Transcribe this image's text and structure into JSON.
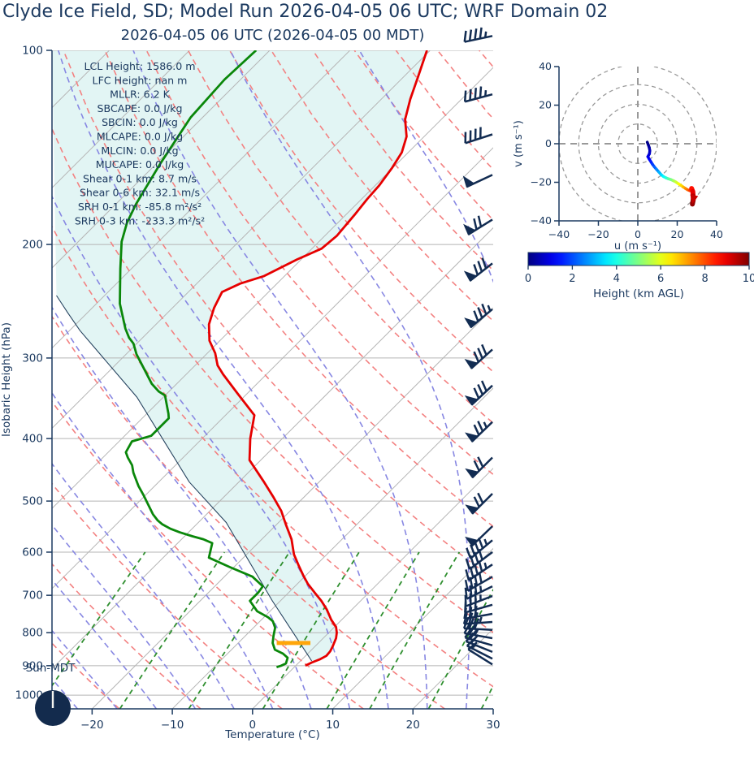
{
  "title": "Clyde Ice Field, SD; Model Run 2026-04-05 06 UTC; WRF Domain 02",
  "subtitle": "2026-04-05 06 UTC  (2026-04-05 00 MDT)",
  "colors": {
    "text_navy": "#1c3a60",
    "barb_navy": "#122c52",
    "temperature": "#e60000",
    "dewpoint": "#0a870a",
    "parcel": "#26435f",
    "cape_fill": "#e2f5f4",
    "dry_adiabat": "#f38181",
    "moist_adiabat": "#8787e2",
    "mixing_ratio": "#2f8f2f",
    "isotherm_gray": "#b5b5b5",
    "hodo_gray": "#999999",
    "lcl_orange": "#ffa60a",
    "sun_clock_fill": "#132b4d"
  },
  "sun_clock": {
    "label": "Sun-MDT"
  },
  "chart_data": [
    {
      "type": "line",
      "id": "skewt",
      "xlabel": "Temperature (°C)",
      "ylabel": "Isobaric Height (hPa)",
      "xlim": [
        -25,
        30
      ],
      "pressure_range": [
        100,
        1050
      ],
      "x_tick_values": [
        -20,
        -10,
        0,
        10,
        20,
        30
      ],
      "x_tick_labels": [
        "−20",
        "−10",
        "0",
        "10",
        "20",
        "30"
      ],
      "y_ticks": [
        100,
        200,
        300,
        400,
        500,
        600,
        700,
        800,
        900,
        1000
      ],
      "stats": [
        {
          "label": "LCL Height",
          "value": "1586.0 m"
        },
        {
          "label": "LFC Height",
          "value": "nan m"
        },
        {
          "label": "MLLR",
          "value": "6.2 K"
        },
        {
          "label": "SBCAPE",
          "value": "0.0 J/kg"
        },
        {
          "label": "SBCIN",
          "value": "0.0 J/kg"
        },
        {
          "label": "MLCAPE",
          "value": "0.0 J/kg"
        },
        {
          "label": "MLCIN",
          "value": "0.0 J/kg"
        },
        {
          "label": "MUCAPE",
          "value": "0.0 J/kg"
        },
        {
          "label": "Shear 0-1 km",
          "value": "8.7 m/s"
        },
        {
          "label": "Shear 0-6 km",
          "value": "32.1 m/s"
        },
        {
          "label": "SRH 0-1 km",
          "value": "-85.8 m²/s²"
        },
        {
          "label": "SRH 0-3 km",
          "value": "-233.3 m²/s²"
        }
      ],
      "temperature": [
        [
          100,
          -60.4
        ],
        [
          110,
          -58.2
        ],
        [
          119,
          -56.4
        ],
        [
          128,
          -54.5
        ],
        [
          136,
          -52.2
        ],
        [
          144,
          -50.8
        ],
        [
          152,
          -50.1
        ],
        [
          162,
          -49.5
        ],
        [
          170,
          -49.3
        ],
        [
          180,
          -48.9
        ],
        [
          194,
          -48.5
        ],
        [
          203,
          -48.8
        ],
        [
          211,
          -50.5
        ],
        [
          224,
          -52.6
        ],
        [
          230,
          -54.6
        ],
        [
          237,
          -55.8
        ],
        [
          251,
          -54.8
        ],
        [
          266,
          -53.4
        ],
        [
          282,
          -51.3
        ],
        [
          295,
          -49.0
        ],
        [
          308,
          -47.2
        ],
        [
          318,
          -45.4
        ],
        [
          340,
          -41.3
        ],
        [
          368,
          -36.4
        ],
        [
          400,
          -34.0
        ],
        [
          432,
          -31.4
        ],
        [
          466,
          -27.0
        ],
        [
          494,
          -23.7
        ],
        [
          518,
          -21.1
        ],
        [
          543,
          -18.9
        ],
        [
          573,
          -16.3
        ],
        [
          605,
          -14.1
        ],
        [
          631,
          -12.0
        ],
        [
          651,
          -10.4
        ],
        [
          672,
          -8.7
        ],
        [
          695,
          -6.6
        ],
        [
          714,
          -4.9
        ],
        [
          737,
          -3.1
        ],
        [
          764,
          -1.3
        ],
        [
          784,
          0.2
        ],
        [
          800,
          1.0
        ],
        [
          816,
          1.6
        ],
        [
          840,
          2.2
        ],
        [
          855,
          2.5
        ],
        [
          869,
          2.6
        ],
        [
          880,
          2.2
        ],
        [
          890,
          1.6
        ],
        [
          900,
          1.2
        ]
      ],
      "dewpoint": [
        [
          100,
          -81.7
        ],
        [
          111,
          -82.0
        ],
        [
          127,
          -81.5
        ],
        [
          150,
          -79.5
        ],
        [
          173,
          -77.5
        ],
        [
          185,
          -76.3
        ],
        [
          198,
          -74.6
        ],
        [
          218,
          -71.4
        ],
        [
          247,
          -67.1
        ],
        [
          270,
          -63.3
        ],
        [
          279,
          -61.7
        ],
        [
          285,
          -60.4
        ],
        [
          296,
          -58.7
        ],
        [
          315,
          -55.4
        ],
        [
          329,
          -53.1
        ],
        [
          338,
          -51.3
        ],
        [
          343,
          -50.0
        ],
        [
          366,
          -47.3
        ],
        [
          372,
          -46.7
        ],
        [
          396,
          -46.7
        ],
        [
          404,
          -48.4
        ],
        [
          420,
          -47.8
        ],
        [
          428,
          -46.9
        ],
        [
          440,
          -45.4
        ],
        [
          452,
          -44.3
        ],
        [
          474,
          -42.0
        ],
        [
          490,
          -40.2
        ],
        [
          524,
          -36.7
        ],
        [
          536,
          -35.3
        ],
        [
          543,
          -34.3
        ],
        [
          552,
          -32.7
        ],
        [
          559,
          -31.1
        ],
        [
          567,
          -29.0
        ],
        [
          573,
          -27.3
        ],
        [
          581,
          -25.7
        ],
        [
          612,
          -24.3
        ],
        [
          633,
          -20.5
        ],
        [
          655,
          -16.5
        ],
        [
          678,
          -14.0
        ],
        [
          693,
          -13.8
        ],
        [
          714,
          -13.8
        ],
        [
          741,
          -11.6
        ],
        [
          757,
          -9.5
        ],
        [
          768,
          -8.4
        ],
        [
          786,
          -7.3
        ],
        [
          809,
          -6.5
        ],
        [
          830,
          -5.7
        ],
        [
          850,
          -4.6
        ],
        [
          862,
          -3.1
        ],
        [
          875,
          -2.0
        ],
        [
          893,
          -1.5
        ],
        [
          900,
          -1.8
        ],
        [
          905,
          -2.2
        ]
      ],
      "parcel": [
        [
          240,
          -76.0
        ],
        [
          255,
          -72.5
        ],
        [
          272,
          -68.7
        ],
        [
          345,
          -53.3
        ],
        [
          467,
          -36.2
        ],
        [
          540,
          -26.5
        ],
        [
          714,
          -11.0
        ],
        [
          885,
          1.4
        ]
      ],
      "lcl_bar": {
        "pressure": 830,
        "t_from": -5.2,
        "t_to": -1.0
      },
      "background": {
        "isotherms_C": {
          "from": -110,
          "to": 40,
          "step": 10
        },
        "dry_adiabats_K": {
          "from": 233,
          "to": 533,
          "step": 10
        },
        "moist_adiabat_starts_C": {
          "from": -40,
          "to": 35,
          "step": 5
        },
        "mixing_ratios_gkg": [
          0.4,
          1,
          2,
          4,
          7,
          10,
          16,
          24,
          32
        ]
      },
      "wind_barbs": [
        {
          "p": 95,
          "pennants": 0,
          "fulls": 4,
          "halfs": 1,
          "angle": -12
        },
        {
          "p": 117,
          "pennants": 0,
          "fulls": 4,
          "halfs": 1,
          "angle": -15
        },
        {
          "p": 135,
          "pennants": 0,
          "fulls": 4,
          "halfs": 0,
          "angle": -18
        },
        {
          "p": 156,
          "pennants": 1,
          "fulls": 0,
          "halfs": 0,
          "angle": -25
        },
        {
          "p": 183,
          "pennants": 1,
          "fulls": 2,
          "halfs": 0,
          "angle": -32
        },
        {
          "p": 214,
          "pennants": 1,
          "fulls": 3,
          "halfs": 0,
          "angle": -38
        },
        {
          "p": 252,
          "pennants": 1,
          "fulls": 3,
          "halfs": 1,
          "angle": -40
        },
        {
          "p": 291,
          "pennants": 1,
          "fulls": 3,
          "halfs": 0,
          "angle": -42
        },
        {
          "p": 331,
          "pennants": 1,
          "fulls": 3,
          "halfs": 0,
          "angle": -43
        },
        {
          "p": 377,
          "pennants": 1,
          "fulls": 2,
          "halfs": 1,
          "angle": -44
        },
        {
          "p": 428,
          "pennants": 1,
          "fulls": 2,
          "halfs": 0,
          "angle": -45
        },
        {
          "p": 487,
          "pennants": 1,
          "fulls": 2,
          "halfs": 0,
          "angle": -45
        },
        {
          "p": 547,
          "pennants": 1,
          "fulls": 0,
          "halfs": 0,
          "angle": -44
        },
        {
          "p": 575,
          "pennants": 0,
          "fulls": 4,
          "halfs": 1,
          "angle": -40
        },
        {
          "p": 600,
          "pennants": 0,
          "fulls": 4,
          "halfs": 0,
          "angle": -37
        },
        {
          "p": 627,
          "pennants": 0,
          "fulls": 4,
          "halfs": 1,
          "angle": -34
        },
        {
          "p": 655,
          "pennants": 0,
          "fulls": 4,
          "halfs": 0,
          "angle": -30
        },
        {
          "p": 678,
          "pennants": 0,
          "fulls": 3,
          "halfs": 1,
          "angle": -26
        },
        {
          "p": 702,
          "pennants": 0,
          "fulls": 3,
          "halfs": 1,
          "angle": -21
        },
        {
          "p": 724,
          "pennants": 0,
          "fulls": 3,
          "halfs": 0,
          "angle": -16
        },
        {
          "p": 748,
          "pennants": 0,
          "fulls": 3,
          "halfs": 0,
          "angle": -10
        },
        {
          "p": 770,
          "pennants": 0,
          "fulls": 3,
          "halfs": 1,
          "angle": -4
        },
        {
          "p": 792,
          "pennants": 0,
          "fulls": 3,
          "halfs": 0,
          "angle": 3
        },
        {
          "p": 816,
          "pennants": 0,
          "fulls": 2,
          "halfs": 1,
          "angle": 10
        },
        {
          "p": 837,
          "pennants": 0,
          "fulls": 2,
          "halfs": 0,
          "angle": 16
        },
        {
          "p": 857,
          "pennants": 0,
          "fulls": 2,
          "halfs": 0,
          "angle": 22
        },
        {
          "p": 878,
          "pennants": 0,
          "fulls": 1,
          "halfs": 1,
          "angle": 27
        },
        {
          "p": 896,
          "pennants": 0,
          "fulls": 1,
          "halfs": 0,
          "angle": 32
        }
      ]
    },
    {
      "type": "line",
      "id": "hodograph",
      "xlabel": "u (m s⁻¹)",
      "ylabel": "v (m s⁻¹)",
      "xlim": [
        -40,
        40
      ],
      "ylim": [
        -40,
        40
      ],
      "tick_values": [
        -40,
        -20,
        0,
        20,
        40
      ],
      "tick_labels": [
        "−40",
        "−20",
        "0",
        "20",
        "40"
      ],
      "rings": [
        10,
        20,
        30,
        40
      ],
      "trace_uvh": [
        [
          4.8,
          0.8,
          0
        ],
        [
          5.3,
          -0.5,
          0.15
        ],
        [
          5.8,
          -2.0,
          0.3
        ],
        [
          6.1,
          -3.6,
          0.5
        ],
        [
          5.9,
          -5.2,
          0.7
        ],
        [
          5.1,
          -6.7,
          0.9
        ],
        [
          5.8,
          -8.0,
          1.1
        ],
        [
          6.6,
          -9.3,
          1.4
        ],
        [
          7.4,
          -10.6,
          1.7
        ],
        [
          8.4,
          -12.0,
          2.0
        ],
        [
          9.5,
          -13.3,
          2.4
        ],
        [
          10.7,
          -14.7,
          2.8
        ],
        [
          11.8,
          -16.0,
          3.2
        ],
        [
          13.0,
          -17.0,
          3.6
        ],
        [
          14.3,
          -17.7,
          4.0
        ],
        [
          15.5,
          -18.2,
          4.4
        ],
        [
          16.8,
          -18.6,
          4.8
        ],
        [
          18.1,
          -19.2,
          5.2
        ],
        [
          19.4,
          -19.9,
          5.6
        ],
        [
          20.7,
          -20.8,
          6.0
        ],
        [
          21.9,
          -21.6,
          6.4
        ],
        [
          23.1,
          -22.5,
          6.8
        ],
        [
          24.2,
          -23.2,
          7.2
        ],
        [
          25.3,
          -23.9,
          7.6
        ],
        [
          26.3,
          -24.3,
          8.0
        ],
        [
          27.3,
          -23.2,
          8.4
        ],
        [
          27.9,
          -24.8,
          8.8
        ],
        [
          28.1,
          -27.0,
          9.2
        ],
        [
          28.1,
          -29.3,
          9.6
        ],
        [
          27.7,
          -31.3,
          10.0
        ]
      ],
      "colorbar": {
        "label": "Height (km AGL)",
        "ticks": [
          0,
          2,
          4,
          6,
          8,
          10
        ],
        "min": 0,
        "max": 10,
        "cmap": "jet"
      }
    }
  ]
}
